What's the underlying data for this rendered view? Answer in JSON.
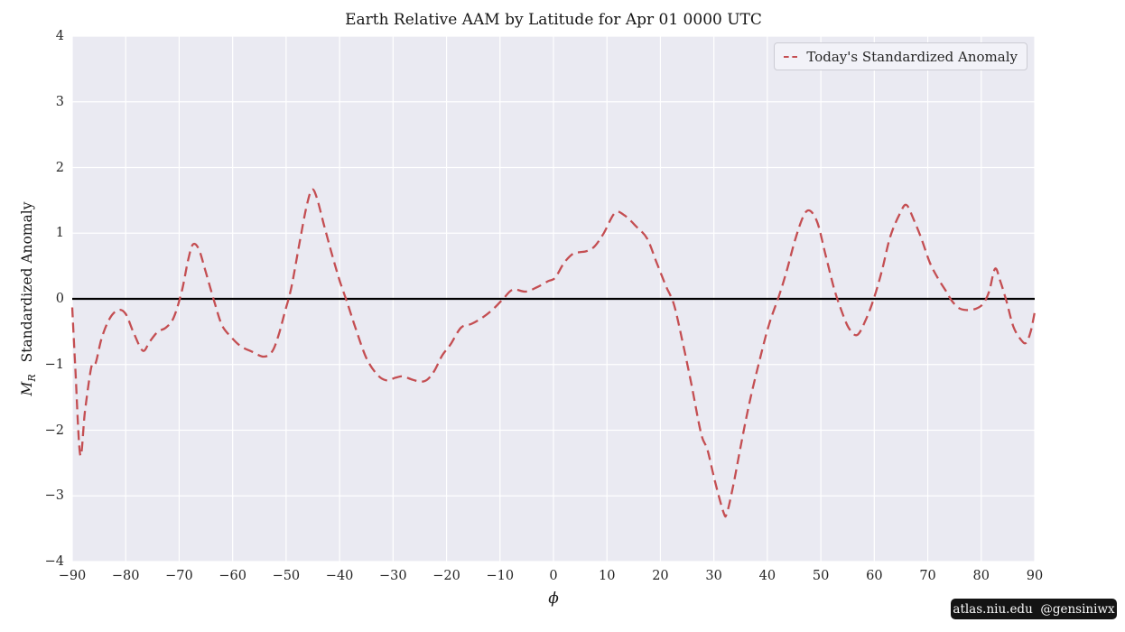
{
  "watermark": {
    "text": "atlas.niu.edu  @gensiniwx"
  },
  "chart_data": {
    "type": "line",
    "title": "Earth Relative AAM by Latitude for Apr 01 0000 UTC",
    "xlabel": "ϕ",
    "ylabel_symbol": "M",
    "ylabel_symbol_sub": "R",
    "ylabel": "Standardized Anomaly",
    "xlim": [
      -90,
      90
    ],
    "ylim": [
      -4,
      4
    ],
    "xticks": [
      -90,
      -80,
      -70,
      -60,
      -50,
      -40,
      -30,
      -20,
      -10,
      0,
      10,
      20,
      30,
      40,
      50,
      60,
      70,
      80,
      90
    ],
    "yticks": [
      -4,
      -3,
      -2,
      -1,
      0,
      1,
      2,
      3,
      4
    ],
    "grid": true,
    "zero_line": true,
    "legend": {
      "position": "upper right",
      "entries": [
        {
          "label": "Today's Standardized Anomaly",
          "color": "#c44e52",
          "linestyle": "dashed"
        }
      ]
    },
    "colors": {
      "axes_background": "#eaeaf2",
      "grid": "#ffffff",
      "zero_line": "#000000",
      "line": "#c44e52",
      "text": "#262626",
      "watermark_background": "#141414",
      "watermark_text": "#fafafa"
    },
    "series": [
      {
        "name": "Today's Standardized Anomaly",
        "color": "#c44e52",
        "linestyle": "dashed",
        "points": [
          [
            -90,
            -0.13
          ],
          [
            -89.4,
            -1.1
          ],
          [
            -88.5,
            -2.38
          ],
          [
            -87.6,
            -1.7
          ],
          [
            -86.4,
            -1.03
          ],
          [
            -85.6,
            -0.97
          ],
          [
            -84.5,
            -0.6
          ],
          [
            -83,
            -0.3
          ],
          [
            -81.4,
            -0.17
          ],
          [
            -80,
            -0.23
          ],
          [
            -78.5,
            -0.52
          ],
          [
            -76.8,
            -0.79
          ],
          [
            -75.5,
            -0.65
          ],
          [
            -74,
            -0.5
          ],
          [
            -72.5,
            -0.44
          ],
          [
            -71,
            -0.28
          ],
          [
            -69.5,
            0.12
          ],
          [
            -68.3,
            0.6
          ],
          [
            -67.4,
            0.83
          ],
          [
            -66.3,
            0.75
          ],
          [
            -65,
            0.4
          ],
          [
            -63.4,
            -0.05
          ],
          [
            -62,
            -0.4
          ],
          [
            -60.3,
            -0.58
          ],
          [
            -58.5,
            -0.72
          ],
          [
            -56.5,
            -0.8
          ],
          [
            -54.2,
            -0.88
          ],
          [
            -52.6,
            -0.8
          ],
          [
            -51.4,
            -0.55
          ],
          [
            -50.3,
            -0.22
          ],
          [
            -49,
            0.18
          ],
          [
            -47.5,
            0.85
          ],
          [
            -46.2,
            1.4
          ],
          [
            -45.2,
            1.66
          ],
          [
            -44.3,
            1.55
          ],
          [
            -43,
            1.15
          ],
          [
            -41.5,
            0.7
          ],
          [
            -40,
            0.28
          ],
          [
            -38.6,
            -0.05
          ],
          [
            -37,
            -0.45
          ],
          [
            -35,
            -0.9
          ],
          [
            -33,
            -1.15
          ],
          [
            -31.3,
            -1.24
          ],
          [
            -29.5,
            -1.2
          ],
          [
            -28.2,
            -1.18
          ],
          [
            -26.4,
            -1.23
          ],
          [
            -24.8,
            -1.26
          ],
          [
            -23.6,
            -1.23
          ],
          [
            -22.3,
            -1.1
          ],
          [
            -20.8,
            -0.86
          ],
          [
            -19.3,
            -0.7
          ],
          [
            -17.3,
            -0.44
          ],
          [
            -15.3,
            -0.38
          ],
          [
            -13.2,
            -0.28
          ],
          [
            -11.2,
            -0.15
          ],
          [
            -9.4,
            0.0
          ],
          [
            -7.6,
            0.14
          ],
          [
            -5.2,
            0.11
          ],
          [
            -3,
            0.18
          ],
          [
            -1,
            0.27
          ],
          [
            0.3,
            0.32
          ],
          [
            2,
            0.55
          ],
          [
            3.7,
            0.69
          ],
          [
            5,
            0.71
          ],
          [
            6.3,
            0.73
          ],
          [
            7.7,
            0.8
          ],
          [
            9.4,
            1.0
          ],
          [
            11.5,
            1.31
          ],
          [
            13.3,
            1.27
          ],
          [
            15.5,
            1.1
          ],
          [
            17.5,
            0.92
          ],
          [
            19.3,
            0.55
          ],
          [
            21,
            0.2
          ],
          [
            22.5,
            -0.08
          ],
          [
            24,
            -0.6
          ],
          [
            25.8,
            -1.3
          ],
          [
            27.6,
            -2.05
          ],
          [
            28.8,
            -2.3
          ],
          [
            30.2,
            -2.78
          ],
          [
            31.8,
            -3.25
          ],
          [
            32.4,
            -3.27
          ],
          [
            33.6,
            -2.85
          ],
          [
            35,
            -2.25
          ],
          [
            36.6,
            -1.6
          ],
          [
            38.2,
            -1.05
          ],
          [
            40.2,
            -0.42
          ],
          [
            42.2,
            0.05
          ],
          [
            43.6,
            0.42
          ],
          [
            45.2,
            0.9
          ],
          [
            46.8,
            1.27
          ],
          [
            48,
            1.34
          ],
          [
            49.4,
            1.15
          ],
          [
            50.8,
            0.7
          ],
          [
            52.4,
            0.18
          ],
          [
            53.6,
            -0.12
          ],
          [
            55.2,
            -0.44
          ],
          [
            56.8,
            -0.55
          ],
          [
            58.4,
            -0.32
          ],
          [
            59.9,
            0.0
          ],
          [
            61.4,
            0.42
          ],
          [
            63,
            0.95
          ],
          [
            64.8,
            1.3
          ],
          [
            66,
            1.43
          ],
          [
            67.4,
            1.2
          ],
          [
            68.8,
            0.92
          ],
          [
            70.4,
            0.55
          ],
          [
            72,
            0.3
          ],
          [
            73.4,
            0.12
          ],
          [
            74.5,
            -0.03
          ],
          [
            75.8,
            -0.14
          ],
          [
            77.2,
            -0.17
          ],
          [
            79,
            -0.15
          ],
          [
            80.4,
            -0.07
          ],
          [
            81.5,
            0.12
          ],
          [
            82.6,
            0.46
          ],
          [
            83.6,
            0.26
          ],
          [
            84.7,
            -0.03
          ],
          [
            86,
            -0.42
          ],
          [
            87.4,
            -0.62
          ],
          [
            88.4,
            -0.67
          ],
          [
            89.3,
            -0.48
          ],
          [
            90,
            -0.2
          ]
        ]
      }
    ]
  }
}
